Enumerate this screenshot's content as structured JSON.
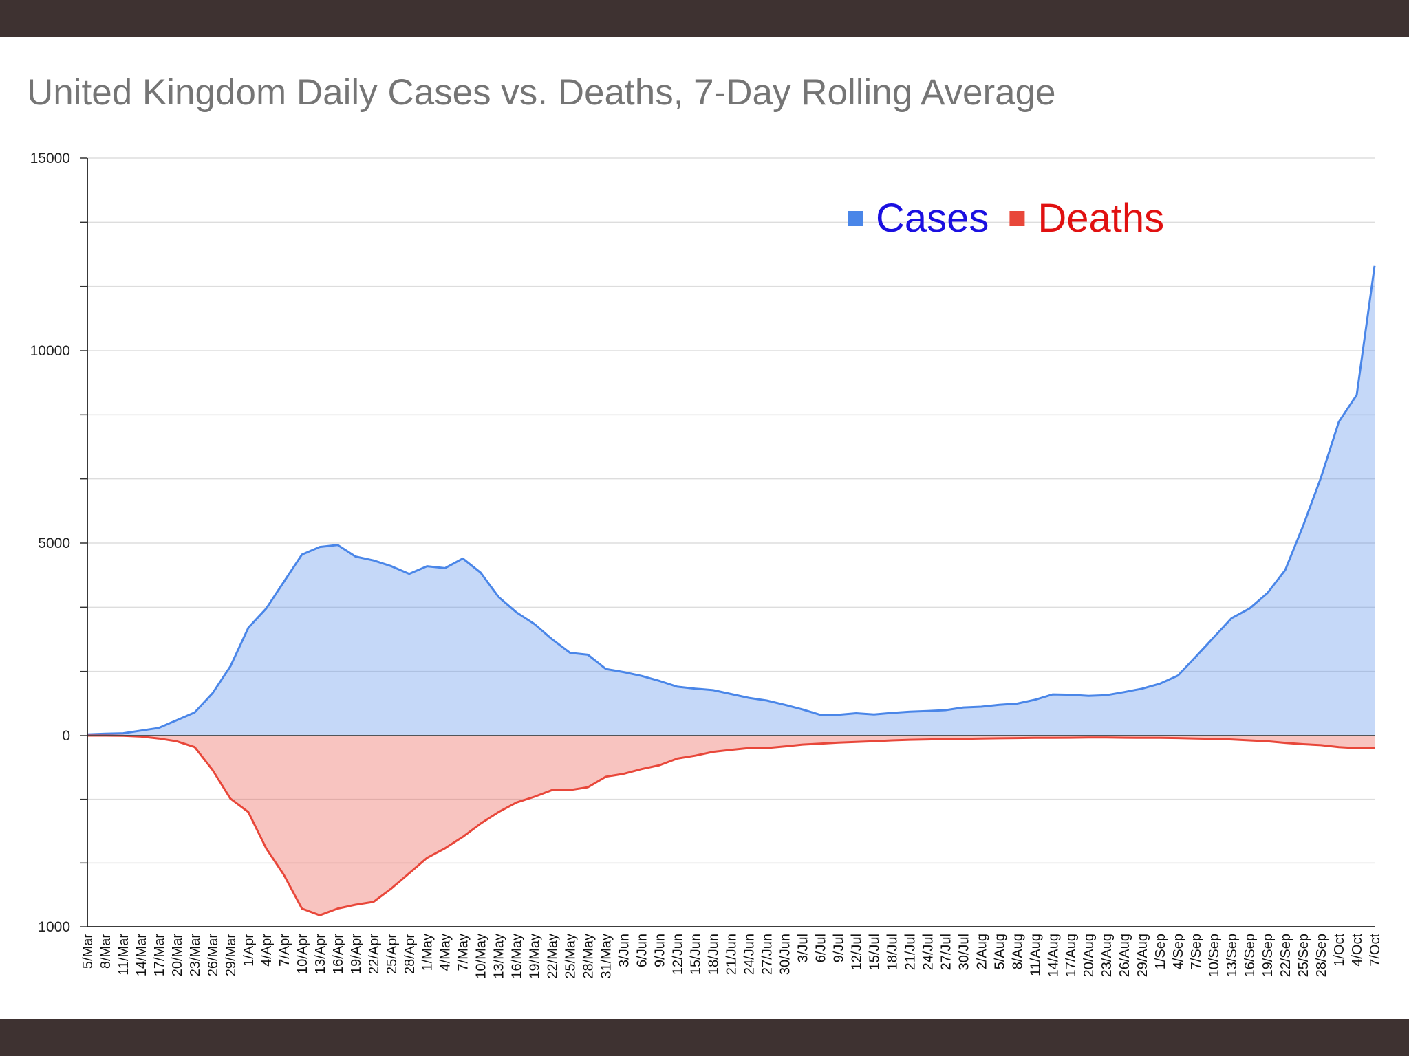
{
  "chart_data": {
    "type": "area",
    "title": "United Kingdom Daily Cases vs. Deaths, 7-Day Rolling Average",
    "categories": [
      "5/Mar",
      "8/Mar",
      "11/Mar",
      "14/Mar",
      "17/Mar",
      "20/Mar",
      "23/Mar",
      "26/Mar",
      "29/Mar",
      "1/Apr",
      "4/Apr",
      "7/Apr",
      "10/Apr",
      "13/Apr",
      "16/Apr",
      "19/Apr",
      "22/Apr",
      "25/Apr",
      "28/Apr",
      "1/May",
      "4/May",
      "7/May",
      "10/May",
      "13/May",
      "16/May",
      "19/May",
      "22/May",
      "25/May",
      "28/May",
      "31/May",
      "3/Jun",
      "6/Jun",
      "9/Jun",
      "12/Jun",
      "15/Jun",
      "18/Jun",
      "21/Jun",
      "24/Jun",
      "27/Jun",
      "30/Jun",
      "3/Jul",
      "6/Jul",
      "9/Jul",
      "12/Jul",
      "15/Jul",
      "18/Jul",
      "21/Jul",
      "24/Jul",
      "27/Jul",
      "30/Jul",
      "2/Aug",
      "5/Aug",
      "8/Aug",
      "11/Aug",
      "14/Aug",
      "17/Aug",
      "20/Aug",
      "23/Aug",
      "26/Aug",
      "29/Aug",
      "1/Sep",
      "4/Sep",
      "7/Sep",
      "10/Sep",
      "13/Sep",
      "16/Sep",
      "19/Sep",
      "22/Sep",
      "25/Sep",
      "28/Sep",
      "1/Oct",
      "4/Oct",
      "7/Oct"
    ],
    "series": [
      {
        "name": "Cases",
        "color": "#4a86e8",
        "text_color": "#1a0fe0",
        "axis": "y",
        "values": [
          30,
          50,
          60,
          130,
          200,
          400,
          600,
          1100,
          1800,
          2800,
          3300,
          4000,
          4700,
          4900,
          4950,
          4650,
          4550,
          4400,
          4200,
          4400,
          4350,
          4600,
          4230,
          3600,
          3200,
          2900,
          2500,
          2150,
          2100,
          1730,
          1650,
          1550,
          1420,
          1270,
          1220,
          1180,
          1080,
          980,
          910,
          800,
          680,
          540,
          540,
          580,
          550,
          590,
          620,
          640,
          660,
          730,
          750,
          800,
          830,
          930,
          1070,
          1060,
          1030,
          1050,
          1130,
          1220,
          1350,
          1560,
          2050,
          2550,
          3050,
          3300,
          3700,
          4300,
          5450,
          6700,
          8150,
          8850,
          12200
        ]
      },
      {
        "name": "Deaths",
        "color": "#e8473a",
        "text_color": "#e01010",
        "axis": "y2",
        "values": [
          0,
          0,
          1,
          5,
          15,
          30,
          60,
          180,
          330,
          400,
          590,
          730,
          905,
          940,
          905,
          885,
          870,
          800,
          720,
          640,
          590,
          530,
          460,
          400,
          350,
          320,
          285,
          285,
          270,
          215,
          200,
          175,
          155,
          120,
          105,
          85,
          75,
          65,
          65,
          57,
          47,
          42,
          37,
          33,
          30,
          25,
          22,
          20,
          18,
          17,
          15,
          14,
          13,
          12,
          12,
          11,
          10,
          10,
          11,
          12,
          12,
          13,
          15,
          17,
          20,
          25,
          30,
          38,
          45,
          50,
          60,
          66,
          63
        ]
      }
    ],
    "ylim": [
      0,
      15000
    ],
    "yticks": [
      0,
      5000,
      10000,
      15000
    ],
    "yticks_minor": [
      1666.67,
      3333.33,
      6666.67,
      8333.33,
      11666.67,
      13333.33
    ],
    "y2lim": [
      0,
      1000
    ],
    "y2ticks": [
      1000
    ],
    "y2ticks_minor": [
      333.33,
      666.67
    ],
    "y2_inverted_below_zero": true,
    "grid": true,
    "legend": "top-right"
  }
}
